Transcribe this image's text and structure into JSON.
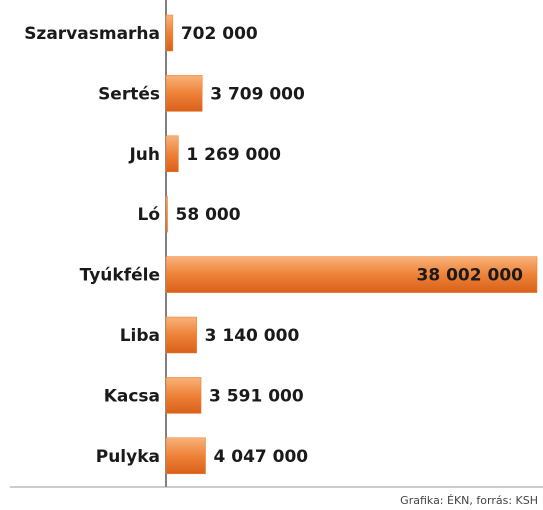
{
  "chart_data": {
    "type": "bar",
    "orientation": "horizontal",
    "categories": [
      "Szarvasmarha",
      "Sertés",
      "Juh",
      "Ló",
      "Tyúkféle",
      "Liba",
      "Kacsa",
      "Pulyka"
    ],
    "values": [
      702000,
      3709000,
      1269000,
      58000,
      38002000,
      3140000,
      3591000,
      4047000
    ],
    "value_labels": [
      "702 000",
      "3 709 000",
      "1 269 000",
      "58 000",
      "38 002 000",
      "3 140 000",
      "3 591 000",
      "4 047 000"
    ],
    "color": "#ea7a2c",
    "source": "Grafika: ÉKN, forrás: KSH"
  }
}
